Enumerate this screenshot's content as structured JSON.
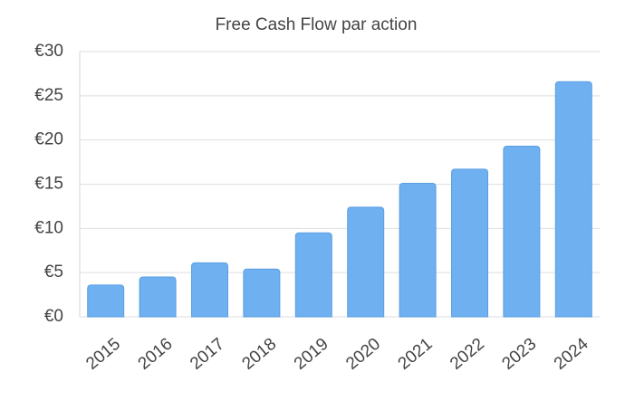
{
  "chart_data": {
    "type": "bar",
    "title": "Free Cash Flow par action",
    "categories": [
      "2015",
      "2016",
      "2017",
      "2018",
      "2019",
      "2020",
      "2021",
      "2022",
      "2023",
      "2024"
    ],
    "values": [
      3.6,
      4.5,
      6.1,
      5.4,
      9.5,
      12.4,
      15.1,
      16.7,
      19.3,
      26.6
    ],
    "color": "#6eb0f0",
    "ylim": [
      0,
      30
    ],
    "yticks": [
      {
        "value": 0,
        "label": "€0"
      },
      {
        "value": 5,
        "label": "€5"
      },
      {
        "value": 10,
        "label": "€10"
      },
      {
        "value": 15,
        "label": "€15"
      },
      {
        "value": 20,
        "label": "€20"
      },
      {
        "value": 25,
        "label": "€25"
      },
      {
        "value": 30,
        "label": "€30"
      }
    ],
    "grid": true
  }
}
